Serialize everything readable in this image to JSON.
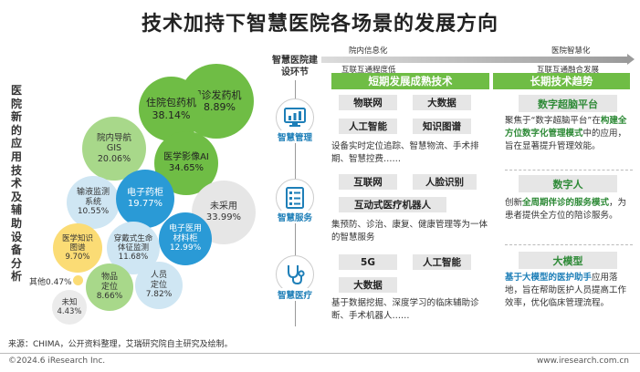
{
  "title": "技术加持下智慧医院各场景的发展方向",
  "left_vertical_label": "医院新的应用技术及辅助设备分析",
  "bubbles": [
    {
      "name": "门诊发药机",
      "pct": "38.89%",
      "color": "#6fbd45",
      "text_color": "#222"
    },
    {
      "name": "住院包药机",
      "pct": "38.14%",
      "color": "#6fbd45",
      "text_color": "#222"
    },
    {
      "name": "院内导航GIS",
      "pct": "20.06%",
      "color": "#a8d88a",
      "text_color": "#333"
    },
    {
      "name": "医学影像AI",
      "pct": "34.65%",
      "color": "#6fbd45",
      "text_color": "#222"
    },
    {
      "name": "输液监测系统",
      "pct": "10.55%",
      "color": "#cfe6f3",
      "text_color": "#333"
    },
    {
      "name": "电子药柜",
      "pct": "19.77%",
      "color": "#2a9ad6",
      "text_color": "#fff"
    },
    {
      "name": "未采用",
      "pct": "33.99%",
      "color": "#e6e6e6",
      "text_color": "#333"
    },
    {
      "name": "医学知识图谱",
      "pct": "9.70%",
      "color": "#fbdc75",
      "text_color": "#333"
    },
    {
      "name": "穿戴式生命体征监测",
      "pct": "11.68%",
      "color": "#cfe6f3",
      "text_color": "#333"
    },
    {
      "name": "电子医用材料柜",
      "pct": "12.99%",
      "color": "#2a9ad6",
      "text_color": "#fff"
    },
    {
      "name": "物品定位",
      "pct": "8.66%",
      "color": "#a8d88a",
      "text_color": "#333"
    },
    {
      "name": "人员定位",
      "pct": "7.82%",
      "color": "#cfe6f3",
      "text_color": "#333"
    },
    {
      "name": "未知",
      "pct": "4.43%",
      "color": "#ebebeb",
      "text_color": "#333"
    },
    {
      "name": "其他",
      "pct": "0.47%",
      "color": "#fbdc75",
      "text_color": "#333"
    }
  ],
  "right": {
    "build_header": "智慧医院建设环节",
    "top_left_label_1": "院内信息化",
    "top_left_label_2": "互联互通程度低",
    "top_right_label_1": "医院智慧化",
    "top_right_label_2": "互联互通融合发展",
    "band_short": "短期发展成熟技术",
    "band_long": "长期技术趋势",
    "band_short_color": "#6fbd45",
    "band_long_color": "#6fbd45",
    "sections": [
      {
        "icon": "monitor-chart-icon",
        "label": "智慧管理",
        "tags": [
          "物联网",
          "大数据",
          "人工智能",
          "知识图谱"
        ],
        "desc": "设备实时定位追踪、智慧物流、手术排期、智慧控费……",
        "trend_title": "数字超脑平台",
        "trend_desc_1": "聚焦于“数字超脑平台”在",
        "trend_desc_hl": "构建全方位数字化管理模式",
        "trend_desc_2": "中的应用，旨在显著提升管理效能。"
      },
      {
        "icon": "document-list-icon",
        "label": "智慧服务",
        "tags": [
          "互联网",
          "人脸识别",
          "互动式医疗机器人"
        ],
        "desc": "集预防、诊治、康复、健康管理等为一体的智慧服务",
        "trend_title": "数字人",
        "trend_desc_1": "创新",
        "trend_desc_hl": "全周期伴诊的服务模式",
        "trend_desc_2": "，为患者提供全方位的陪诊服务。"
      },
      {
        "icon": "stethoscope-icon",
        "label": "智慧医疗",
        "tags": [
          "5G",
          "人工智能",
          "大数据"
        ],
        "desc": "基于数据挖掘、深度学习的临床辅助诊断、手术机器人……",
        "trend_title": "大模型",
        "trend_desc_1": "",
        "trend_desc_hl": "基于大模型的医护助手",
        "trend_desc_2": "应用落地，旨在帮助医护人员提高工作效率，优化临床管理流程。"
      }
    ]
  },
  "source": "来源：CHIMA，公开资料整理，艾瑞研究院自主研究及绘制。",
  "copyright": "©2024.6 iResearch Inc.",
  "website": "www.iresearch.com.cn"
}
